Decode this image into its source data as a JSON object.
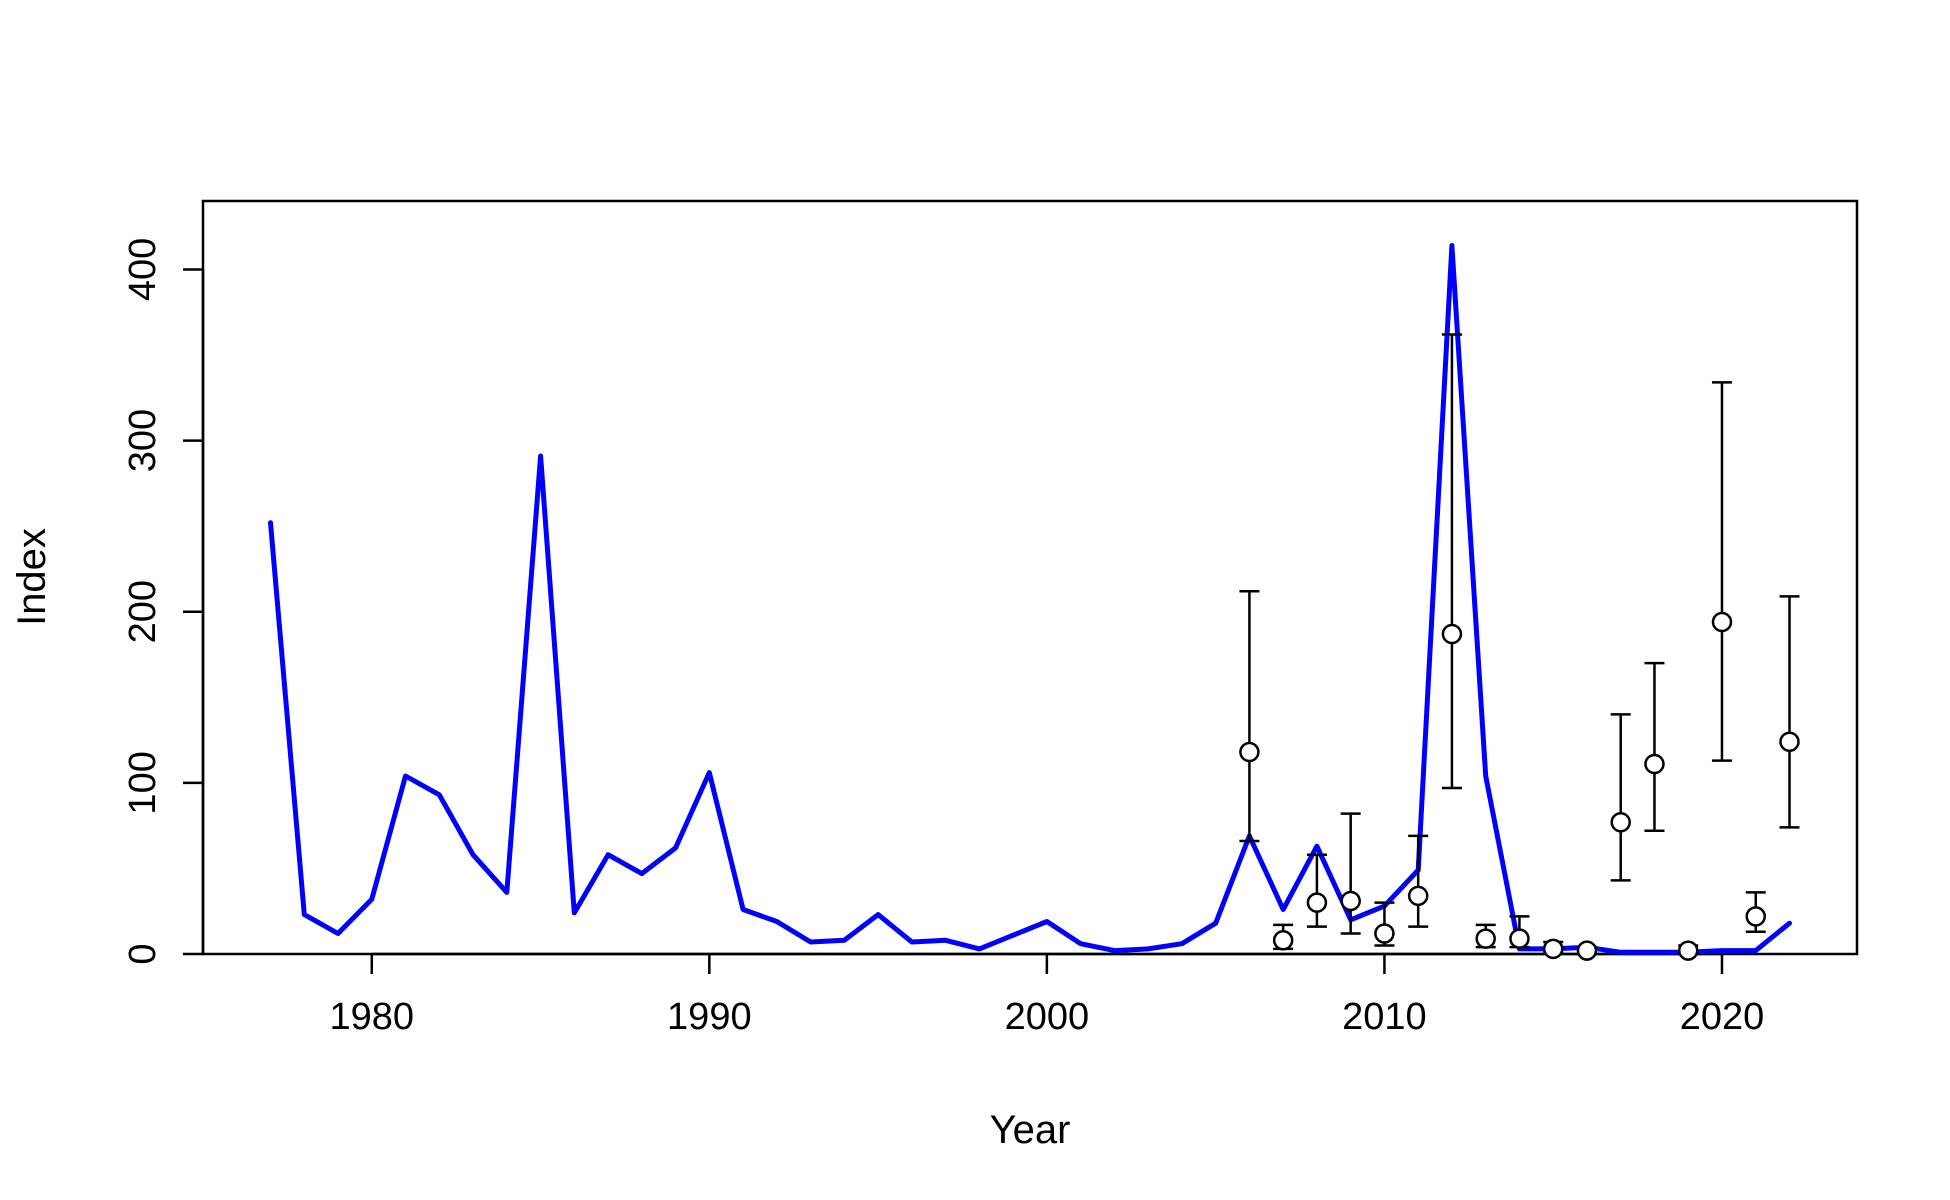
{
  "chart_data": {
    "type": "line",
    "title": "",
    "xlabel": "Year",
    "ylabel": "Index",
    "xlim": [
      1975,
      2024
    ],
    "ylim": [
      0,
      440
    ],
    "x_ticks": [
      1980,
      1990,
      2000,
      2010,
      2020
    ],
    "y_ticks": [
      0,
      100,
      200,
      300,
      400
    ],
    "grid": false,
    "legend": "none",
    "series": [
      {
        "type": "line",
        "color": "#0000ff",
        "x": [
          1977,
          1978,
          1979,
          1980,
          1981,
          1982,
          1983,
          1984,
          1985,
          1986,
          1987,
          1988,
          1989,
          1990,
          1991,
          1992,
          1993,
          1994,
          1995,
          1996,
          1997,
          1998,
          1999,
          2000,
          2001,
          2002,
          2003,
          2004,
          2005,
          2006,
          2007,
          2008,
          2009,
          2010,
          2011,
          2012,
          2013,
          2014,
          2015,
          2016,
          2017,
          2018,
          2019,
          2020,
          2021,
          2022
        ],
        "y": [
          252,
          23,
          12,
          32,
          104,
          93,
          58,
          36,
          291,
          24,
          58,
          47,
          62,
          106,
          26,
          19,
          7,
          8,
          23,
          7,
          8,
          3,
          11,
          19,
          6,
          2,
          3,
          6,
          18,
          69,
          26,
          63,
          20,
          28,
          49,
          414,
          104,
          3,
          3,
          4,
          1,
          1,
          1,
          2,
          2,
          18
        ]
      },
      {
        "type": "scatter-errorbar",
        "color": "#000000",
        "x": [
          2006,
          2007,
          2008,
          2009,
          2010,
          2011,
          2012,
          2013,
          2014,
          2015,
          2016,
          2019,
          2020,
          2021,
          2022,
          2017,
          2018
        ],
        "y": [
          118,
          8,
          30,
          31,
          12,
          34,
          187,
          9,
          9,
          3,
          2,
          2,
          194,
          22,
          124,
          77,
          111
        ],
        "lower": [
          66,
          3,
          16,
          12,
          5,
          16,
          97,
          4,
          4,
          1,
          0,
          0,
          113,
          13,
          74,
          43,
          72
        ],
        "upper": [
          212,
          17,
          58,
          82,
          30,
          69,
          362,
          17,
          22,
          7,
          4,
          5,
          334,
          36,
          209,
          140,
          170
        ]
      }
    ]
  }
}
